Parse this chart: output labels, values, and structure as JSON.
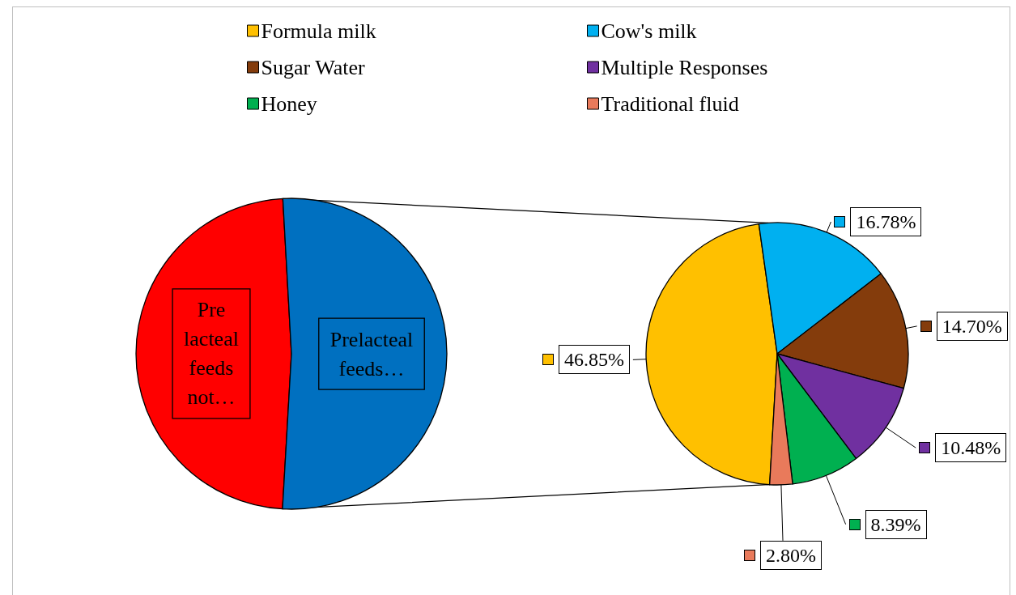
{
  "chart_data": [
    {
      "type": "pie",
      "categories": [
        "Pre lacteal feeds not…",
        "Prelacteal feeds…"
      ],
      "values": [
        48.2,
        51.8
      ],
      "colors": [
        "#ff0000",
        "#0070c0"
      ]
    },
    {
      "type": "pie",
      "categories": [
        "Formula milk",
        "Cow's milk",
        "Sugar Water",
        "Multiple Responses",
        "Honey",
        "Traditional fluid"
      ],
      "values": [
        46.85,
        16.78,
        14.7,
        10.48,
        8.39,
        2.8
      ],
      "colors": [
        "#ffc000",
        "#00b0f0",
        "#843c0c",
        "#7030a0",
        "#00b050",
        "#e97a5b"
      ],
      "value_labels": [
        "46.85%",
        "16.78%",
        "14.70%",
        "10.48%",
        "8.39%",
        "2.80%"
      ],
      "legend": "top"
    }
  ]
}
